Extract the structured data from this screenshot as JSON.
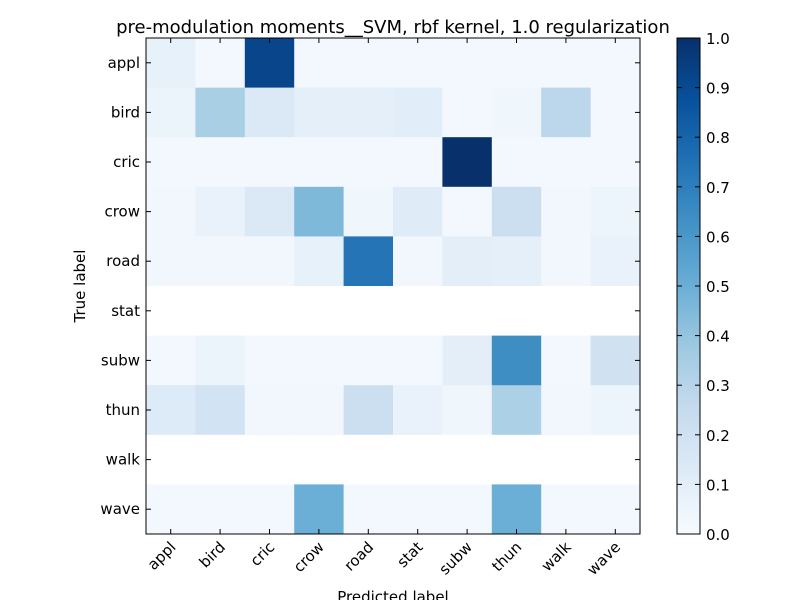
{
  "chart_data": {
    "type": "heatmap",
    "title": "pre-modulation moments__SVM, rbf kernel, 1.0 regularization",
    "xlabel": "Predicted label",
    "ylabel": "True label",
    "x_categories": [
      "appl",
      "bird",
      "cric",
      "crow",
      "road",
      "stat",
      "subw",
      "thun",
      "walk",
      "wave"
    ],
    "y_categories": [
      "appl",
      "bird",
      "cric",
      "crow",
      "road",
      "stat",
      "subw",
      "thun",
      "walk",
      "wave"
    ],
    "values": [
      [
        0.08,
        0.02,
        0.92,
        0.02,
        0.02,
        0.02,
        0.02,
        0.02,
        0.02,
        0.02
      ],
      [
        0.06,
        0.34,
        0.14,
        0.09,
        0.09,
        0.11,
        0.02,
        0.04,
        0.28,
        0.02
      ],
      [
        0.02,
        0.02,
        0.02,
        0.02,
        0.02,
        0.02,
        1.0,
        0.02,
        0.02,
        0.02
      ],
      [
        0.03,
        0.07,
        0.14,
        0.45,
        0.04,
        0.12,
        0.02,
        0.22,
        0.03,
        0.05
      ],
      [
        0.03,
        0.03,
        0.03,
        0.08,
        0.74,
        0.03,
        0.1,
        0.09,
        0.03,
        0.07
      ],
      [
        null,
        null,
        null,
        null,
        null,
        null,
        null,
        null,
        null,
        null
      ],
      [
        0.02,
        0.06,
        0.02,
        0.02,
        0.02,
        0.02,
        0.1,
        0.64,
        0.02,
        0.2
      ],
      [
        0.13,
        0.19,
        0.03,
        0.03,
        0.22,
        0.07,
        0.04,
        0.33,
        0.03,
        0.05
      ],
      [
        null,
        null,
        null,
        null,
        null,
        null,
        null,
        null,
        null,
        null
      ],
      [
        0.02,
        0.02,
        0.02,
        0.5,
        0.02,
        0.02,
        0.02,
        0.5,
        0.02,
        0.02
      ]
    ],
    "colorbar": {
      "colormap": "Blues",
      "range": [
        0.0,
        1.0
      ],
      "ticks": [
        "0.0",
        "0.1",
        "0.2",
        "0.3",
        "0.4",
        "0.5",
        "0.6",
        "0.7",
        "0.8",
        "0.9",
        "1.0"
      ]
    }
  }
}
